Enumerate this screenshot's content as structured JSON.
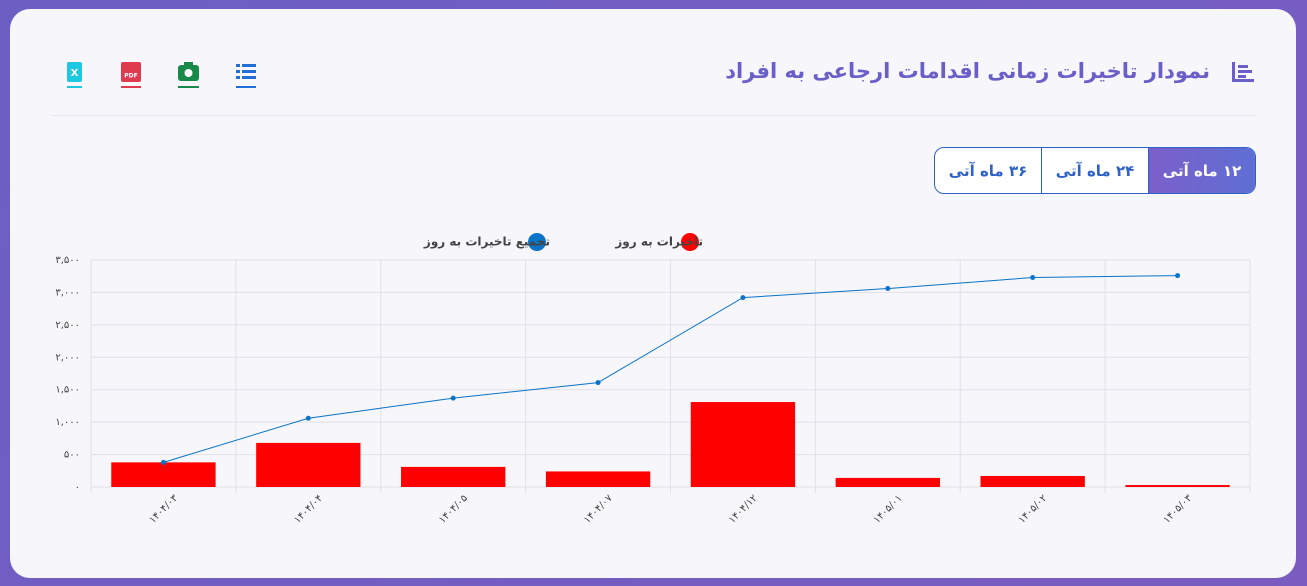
{
  "header": {
    "title": "نمودار تاخیرات زمانی اقدامات ارجاعی به افراد",
    "export_icons": {
      "excel": "X",
      "pdf": "PDF"
    }
  },
  "tabs": [
    "۱۲ ماه آتی",
    "۲۴ ماه آتی",
    "۳۶ ماه آتی"
  ],
  "chart_data": {
    "type": "bar",
    "categories": [
      "۱۴۰۴/۰۳",
      "۱۴۰۴/۰۴",
      "۱۴۰۴/۰۵",
      "۱۴۰۴/۰۷",
      "۱۴۰۴/۱۲",
      "۱۴۰۵/۰۱",
      "۱۴۰۵/۰۲",
      "۱۴۰۵/۰۳"
    ],
    "series": [
      {
        "name": "تاخیرات به روز",
        "color": "#ff0000",
        "type": "bar",
        "values": [
          380,
          680,
          310,
          240,
          1310,
          140,
          170,
          30
        ]
      },
      {
        "name": "تجمیع تاخیرات به روز",
        "color": "#0a74c9",
        "type": "line",
        "values": [
          380,
          1060,
          1370,
          1610,
          2920,
          3060,
          3230,
          3260
        ]
      }
    ],
    "ylim": [
      0,
      3500
    ],
    "yticks": [
      {
        "value": 0,
        "label": "۰"
      },
      {
        "value": 500,
        "label": "۵۰۰"
      },
      {
        "value": 1000,
        "label": "۱,۰۰۰"
      },
      {
        "value": 1500,
        "label": "۱,۵۰۰"
      },
      {
        "value": 2000,
        "label": "۲,۰۰۰"
      },
      {
        "value": 2500,
        "label": "۲,۵۰۰"
      },
      {
        "value": 3000,
        "label": "۳,۰۰۰"
      },
      {
        "value": 3500,
        "label": "۳,۵۰۰"
      }
    ],
    "grid": true
  }
}
